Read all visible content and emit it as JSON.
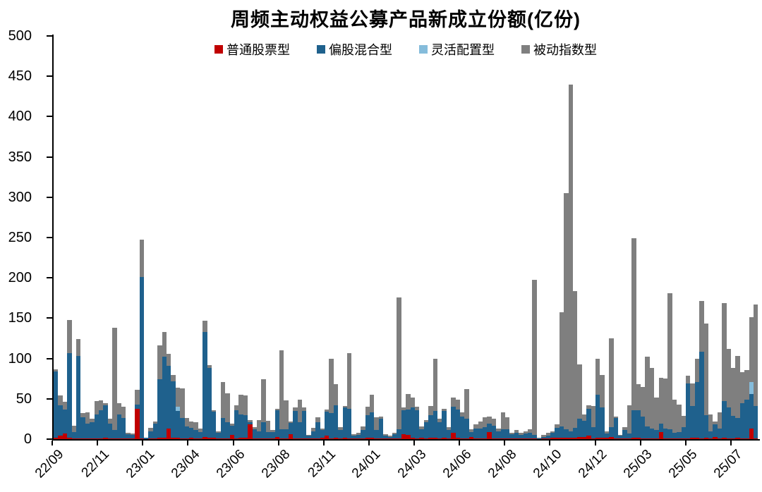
{
  "title": "周频主动权益公募产品新成立份额(亿份)",
  "legend": {
    "items": [
      {
        "label": "普通股票型",
        "color": "#C00000"
      },
      {
        "label": "偏股混合型",
        "color": "#1F618D"
      },
      {
        "label": "灵活配置型",
        "color": "#85BCDB"
      },
      {
        "label": "被动指数型",
        "color": "#7F7F7F"
      }
    ]
  },
  "chart_data": {
    "type": "bar",
    "stacked": true,
    "title": "周频主动权益公募产品新成立份额(亿份)",
    "x_unit": "week",
    "ylim": [
      0,
      500
    ],
    "ytick_step": 50,
    "yticks": [
      0,
      50,
      100,
      150,
      200,
      250,
      300,
      350,
      400,
      450,
      500
    ],
    "grid": false,
    "legend_position": "top-center",
    "x_tick_labels": [
      "22/09",
      "22/11",
      "23/01",
      "23/04",
      "23/06",
      "23/08",
      "23/11",
      "24/01",
      "24/03",
      "24/06",
      "24/08",
      "24/10",
      "24/12",
      "25/03",
      "25/05",
      "25/07"
    ],
    "x_ticks_every_n_bars": 10,
    "series_order": [
      "普通股票型",
      "偏股混合型",
      "灵活配置型",
      "被动指数型"
    ],
    "series_colors": {
      "普通股票型": "#C00000",
      "偏股混合型": "#1F618D",
      "灵活配置型": "#85BCDB",
      "被动指数型": "#7F7F7F"
    },
    "bars_format": "[普通股票型, 偏股混合型, 灵活配置型, 被动指数型] per week, 亿份 (estimated from pixels)",
    "bars": [
      [
        2,
        82,
        0,
        3
      ],
      [
        4,
        38,
        0,
        12
      ],
      [
        7,
        30,
        0,
        9
      ],
      [
        2,
        105,
        0,
        41
      ],
      [
        1,
        8,
        0,
        8
      ],
      [
        1,
        102,
        0,
        21
      ],
      [
        1,
        26,
        0,
        5
      ],
      [
        1,
        18,
        0,
        14
      ],
      [
        1,
        20,
        0,
        4
      ],
      [
        1,
        30,
        0,
        16
      ],
      [
        1,
        35,
        0,
        12
      ],
      [
        2,
        40,
        0,
        3
      ],
      [
        1,
        18,
        0,
        6
      ],
      [
        1,
        10,
        0,
        127
      ],
      [
        1,
        30,
        0,
        14
      ],
      [
        1,
        25,
        0,
        14
      ],
      [
        1,
        5,
        0,
        2
      ],
      [
        1,
        4,
        0,
        2
      ],
      [
        38,
        5,
        0,
        18
      ],
      [
        1,
        200,
        0,
        46
      ],
      [
        0,
        2,
        0,
        0
      ],
      [
        1,
        9,
        0,
        4
      ],
      [
        1,
        18,
        0,
        3
      ],
      [
        2,
        72,
        0,
        42
      ],
      [
        2,
        100,
        0,
        31
      ],
      [
        13,
        78,
        0,
        15
      ],
      [
        2,
        70,
        0,
        8
      ],
      [
        2,
        33,
        5,
        24
      ],
      [
        1,
        25,
        0,
        37
      ],
      [
        1,
        15,
        0,
        10
      ],
      [
        2,
        12,
        0,
        8
      ],
      [
        1,
        10,
        0,
        10
      ],
      [
        1,
        8,
        0,
        4
      ],
      [
        3,
        130,
        0,
        14
      ],
      [
        2,
        86,
        0,
        4
      ],
      [
        2,
        32,
        0,
        2
      ],
      [
        1,
        7,
        0,
        2
      ],
      [
        1,
        25,
        0,
        45
      ],
      [
        1,
        20,
        0,
        36
      ],
      [
        5,
        12,
        0,
        2
      ],
      [
        1,
        35,
        0,
        6
      ],
      [
        2,
        29,
        0,
        24
      ],
      [
        2,
        28,
        0,
        24
      ],
      [
        18,
        3,
        0,
        3
      ],
      [
        1,
        11,
        0,
        3
      ],
      [
        1,
        9,
        0,
        14
      ],
      [
        1,
        20,
        0,
        53
      ],
      [
        1,
        8,
        0,
        14
      ],
      [
        1,
        8,
        0,
        2
      ],
      [
        3,
        33,
        0,
        2
      ],
      [
        1,
        11,
        0,
        98
      ],
      [
        1,
        11,
        0,
        36
      ],
      [
        6,
        14,
        0,
        2
      ],
      [
        1,
        34,
        0,
        4
      ],
      [
        1,
        20,
        0,
        28
      ],
      [
        1,
        34,
        0,
        4
      ],
      [
        1,
        3,
        0,
        1
      ],
      [
        1,
        9,
        0,
        4
      ],
      [
        1,
        20,
        0,
        6
      ],
      [
        2,
        9,
        0,
        2
      ],
      [
        4,
        30,
        0,
        3
      ],
      [
        1,
        31,
        0,
        68
      ],
      [
        2,
        40,
        0,
        26
      ],
      [
        1,
        10,
        0,
        4
      ],
      [
        2,
        37,
        0,
        2
      ],
      [
        1,
        37,
        0,
        69
      ],
      [
        1,
        3,
        0,
        2
      ],
      [
        1,
        4,
        0,
        3
      ],
      [
        1,
        10,
        0,
        5
      ],
      [
        2,
        28,
        0,
        10
      ],
      [
        2,
        31,
        0,
        22
      ],
      [
        1,
        10,
        0,
        16
      ],
      [
        1,
        24,
        0,
        3
      ],
      [
        1,
        3,
        0,
        2
      ],
      [
        1,
        2,
        0,
        1
      ],
      [
        1,
        5,
        0,
        2
      ],
      [
        1,
        11,
        0,
        164
      ],
      [
        6,
        30,
        0,
        3
      ],
      [
        5,
        32,
        0,
        19
      ],
      [
        2,
        37,
        0,
        13
      ],
      [
        1,
        35,
        0,
        4
      ],
      [
        2,
        10,
        0,
        4
      ],
      [
        1,
        20,
        0,
        3
      ],
      [
        2,
        28,
        0,
        11
      ],
      [
        2,
        33,
        0,
        65
      ],
      [
        1,
        20,
        0,
        4
      ],
      [
        2,
        33,
        0,
        3
      ],
      [
        1,
        10,
        0,
        4
      ],
      [
        8,
        32,
        0,
        12
      ],
      [
        2,
        35,
        0,
        12
      ],
      [
        1,
        27,
        0,
        5
      ],
      [
        1,
        24,
        0,
        37
      ],
      [
        3,
        6,
        0,
        3
      ],
      [
        1,
        12,
        0,
        5
      ],
      [
        1,
        12,
        0,
        9
      ],
      [
        1,
        14,
        0,
        12
      ],
      [
        9,
        10,
        0,
        9
      ],
      [
        1,
        16,
        0,
        8
      ],
      [
        1,
        9,
        0,
        3
      ],
      [
        1,
        11,
        0,
        21
      ],
      [
        1,
        11,
        0,
        15
      ],
      [
        1,
        5,
        0,
        2
      ],
      [
        1,
        7,
        0,
        3
      ],
      [
        1,
        4,
        0,
        3
      ],
      [
        1,
        6,
        0,
        3
      ],
      [
        1,
        7,
        0,
        4
      ],
      [
        1,
        4,
        0,
        193
      ],
      [
        0,
        1,
        0,
        1
      ],
      [
        1,
        2,
        0,
        2
      ],
      [
        1,
        3,
        0,
        4
      ],
      [
        2,
        6,
        0,
        2
      ],
      [
        2,
        12,
        0,
        4
      ],
      [
        2,
        14,
        0,
        141
      ],
      [
        2,
        10,
        0,
        293
      ],
      [
        2,
        8,
        0,
        430
      ],
      [
        2,
        12,
        0,
        170
      ],
      [
        3,
        22,
        0,
        68
      ],
      [
        3,
        20,
        0,
        8
      ],
      [
        4,
        34,
        0,
        4
      ],
      [
        1,
        14,
        0,
        26
      ],
      [
        2,
        53,
        0,
        45
      ],
      [
        2,
        37,
        0,
        41
      ],
      [
        2,
        5,
        0,
        3
      ],
      [
        3,
        12,
        0,
        110
      ],
      [
        1,
        25,
        0,
        2
      ],
      [
        1,
        3,
        0,
        1
      ],
      [
        1,
        10,
        0,
        4
      ],
      [
        1,
        6,
        0,
        35
      ],
      [
        2,
        34,
        0,
        213
      ],
      [
        2,
        34,
        0,
        32
      ],
      [
        1,
        27,
        0,
        37
      ],
      [
        1,
        15,
        0,
        86
      ],
      [
        1,
        12,
        0,
        75
      ],
      [
        1,
        10,
        0,
        41
      ],
      [
        9,
        10,
        0,
        57
      ],
      [
        1,
        12,
        0,
        62
      ],
      [
        1,
        11,
        0,
        169
      ],
      [
        1,
        7,
        0,
        41
      ],
      [
        1,
        8,
        0,
        34
      ],
      [
        1,
        14,
        0,
        14
      ],
      [
        1,
        68,
        0,
        10
      ],
      [
        2,
        39,
        0,
        28
      ],
      [
        2,
        69,
        0,
        29
      ],
      [
        1,
        107,
        0,
        63
      ],
      [
        2,
        28,
        0,
        113
      ],
      [
        1,
        9,
        0,
        21
      ],
      [
        3,
        15,
        0,
        4
      ],
      [
        1,
        12,
        0,
        20
      ],
      [
        2,
        45,
        0,
        122
      ],
      [
        1,
        38,
        0,
        73
      ],
      [
        1,
        28,
        0,
        59
      ],
      [
        2,
        24,
        0,
        77
      ],
      [
        1,
        44,
        0,
        38
      ],
      [
        1,
        48,
        0,
        37
      ],
      [
        13,
        43,
        15,
        80
      ],
      [
        1,
        40,
        0,
        126
      ]
    ]
  }
}
